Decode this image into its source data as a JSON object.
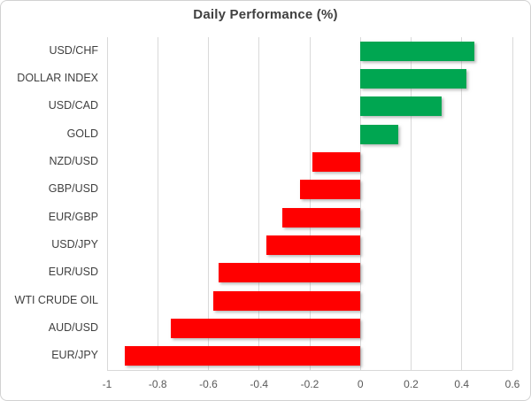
{
  "chart_data": {
    "type": "bar",
    "orientation": "horizontal",
    "title": "Daily Performance (%)",
    "categories": [
      "USD/CHF",
      "DOLLAR INDEX",
      "USD/CAD",
      "GOLD",
      "NZD/USD",
      "GBP/USD",
      "EUR/GBP",
      "USD/JPY",
      "EUR/USD",
      "WTI CRUDE OIL",
      "AUD/USD",
      "EUR/JPY"
    ],
    "values": [
      0.45,
      0.42,
      0.32,
      0.15,
      -0.19,
      -0.24,
      -0.31,
      -0.37,
      -0.56,
      -0.58,
      -0.75,
      -0.93
    ],
    "xlim": [
      -1,
      0.6
    ],
    "x_ticks": [
      -1,
      -0.8,
      -0.6,
      -0.4,
      -0.2,
      0,
      0.2,
      0.4,
      0.6
    ],
    "x_tick_labels": [
      "-1",
      "-0.8",
      "-0.6",
      "-0.4",
      "-0.2",
      "0",
      "0.2",
      "0.4",
      "0.6"
    ],
    "grid": "vertical",
    "legend_position": "none",
    "xlabel": "",
    "ylabel": "",
    "colors": {
      "positive_bar": "#00A651",
      "negative_bar": "#FF0000",
      "gridline": "#D9D9D9",
      "title_text": "#404040",
      "category_text": "#404040",
      "tick_text": "#595959",
      "frame_border": "#D2D2D2",
      "background": "#FFFFFF"
    }
  }
}
